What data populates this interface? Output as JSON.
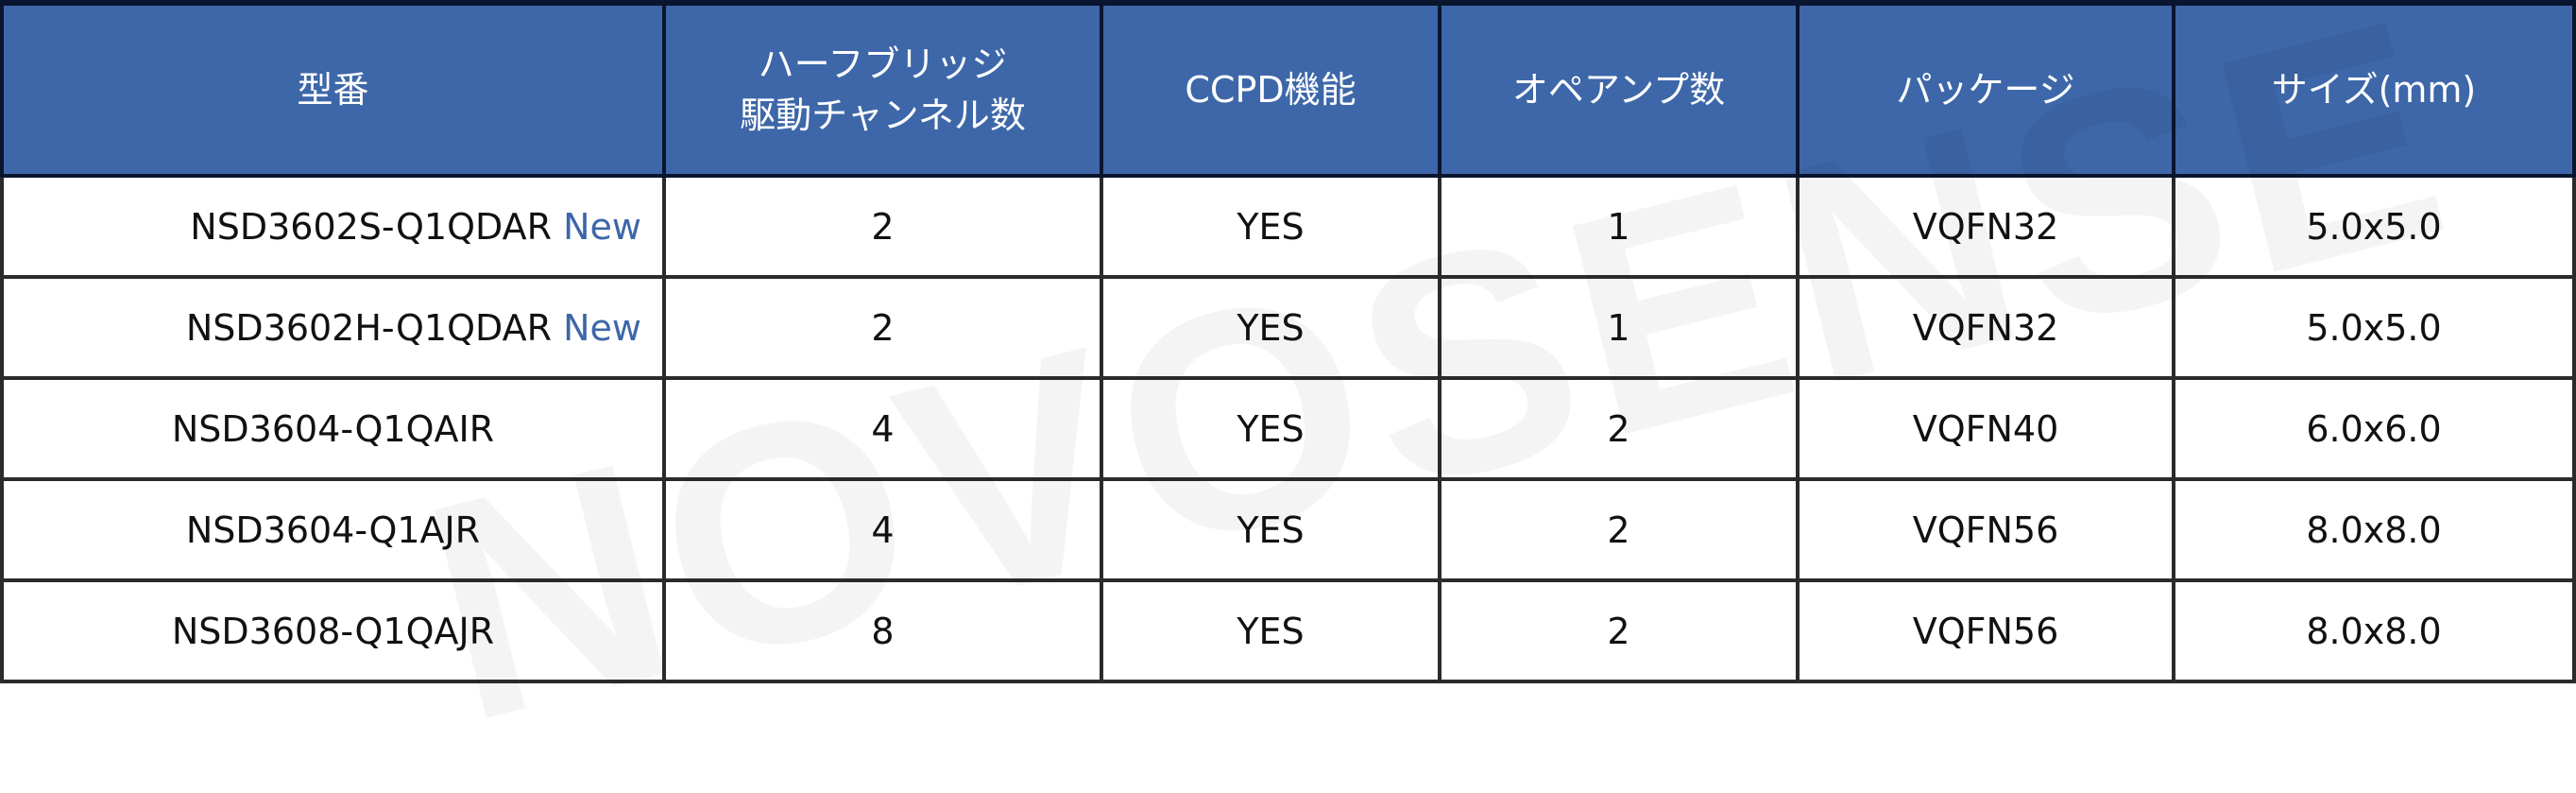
{
  "watermark": "NOVOSENSE",
  "accent_color": "#3d67a8",
  "headers": [
    "型番",
    "ハーフブリッジ\n駆動チャンネル数",
    "CCPD機能",
    "オペアンプ数",
    "パッケージ",
    "サイズ(mm)"
  ],
  "header_line1": "ハーフブリッジ",
  "header_line2": "駆動チャンネル数",
  "rows": [
    {
      "model": "NSD3602S-Q1QDAR",
      "badge": "New",
      "channels": "2",
      "ccpd": "YES",
      "opamps": "1",
      "package": "VQFN32",
      "size": "5.0x5.0"
    },
    {
      "model": "NSD3602H-Q1QDAR",
      "badge": "New",
      "channels": "2",
      "ccpd": "YES",
      "opamps": "1",
      "package": "VQFN32",
      "size": "5.0x5.0"
    },
    {
      "model": "NSD3604-Q1QAIR",
      "channels": "4",
      "ccpd": "YES",
      "opamps": "2",
      "package": "VQFN40",
      "size": "6.0x6.0"
    },
    {
      "model": "NSD3604-Q1AJR",
      "channels": "4",
      "ccpd": "YES",
      "opamps": "2",
      "package": "VQFN56",
      "size": "8.0x8.0"
    },
    {
      "model": "NSD3608-Q1QAJR",
      "channels": "8",
      "ccpd": "YES",
      "opamps": "2",
      "package": "VQFN56",
      "size": "8.0x8.0"
    }
  ]
}
